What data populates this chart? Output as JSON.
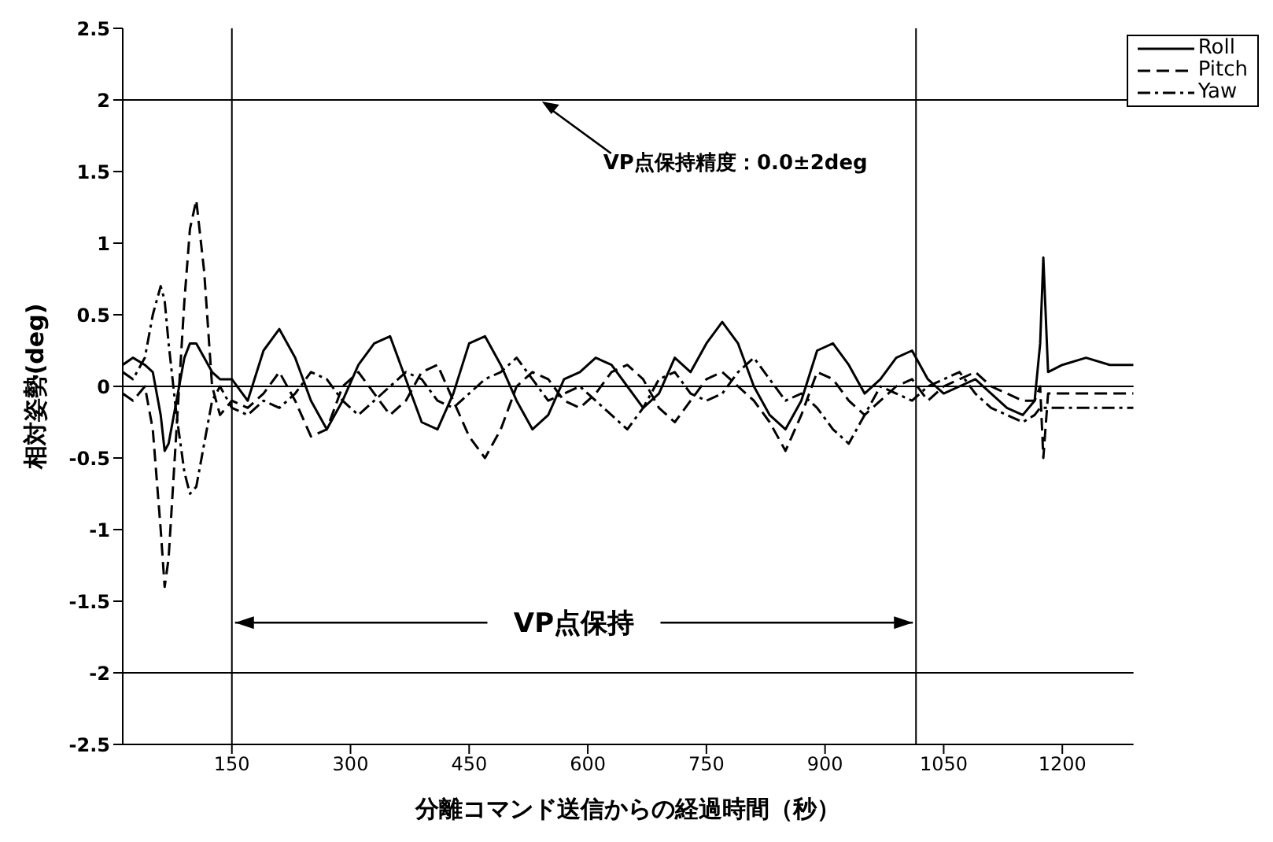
{
  "chart_data": {
    "type": "line",
    "xlabel": "分離コマンド送信からの経過時間（秒）",
    "ylabel": "相対姿勢(deg)",
    "x": [
      12,
      25,
      40,
      50,
      60,
      65,
      70,
      80,
      90,
      97,
      105,
      115,
      125,
      135,
      150,
      170,
      190,
      210,
      230,
      250,
      270,
      290,
      310,
      330,
      350,
      370,
      390,
      410,
      430,
      450,
      470,
      490,
      510,
      530,
      550,
      570,
      590,
      610,
      630,
      650,
      670,
      690,
      710,
      730,
      750,
      770,
      790,
      810,
      830,
      850,
      870,
      890,
      910,
      930,
      950,
      970,
      990,
      1010,
      1030,
      1050,
      1070,
      1090,
      1110,
      1130,
      1150,
      1165,
      1172,
      1176,
      1182,
      1200,
      1230,
      1260,
      1290
    ],
    "series": [
      {
        "name": "Roll",
        "color": "#000000",
        "line_style": "solid",
        "values": [
          0.15,
          0.2,
          0.15,
          0.1,
          -0.2,
          -0.45,
          -0.4,
          -0.1,
          0.2,
          0.3,
          0.3,
          0.2,
          0.1,
          0.05,
          0.05,
          -0.1,
          0.25,
          0.4,
          0.2,
          -0.1,
          -0.3,
          -0.1,
          0.15,
          0.3,
          0.35,
          0.05,
          -0.25,
          -0.3,
          -0.05,
          0.3,
          0.35,
          0.15,
          -0.1,
          -0.3,
          -0.2,
          0.05,
          0.1,
          0.2,
          0.15,
          0.0,
          -0.15,
          -0.05,
          0.2,
          0.1,
          0.3,
          0.45,
          0.3,
          0.0,
          -0.2,
          -0.3,
          -0.1,
          0.25,
          0.3,
          0.15,
          -0.05,
          0.05,
          0.2,
          0.25,
          0.05,
          -0.05,
          0.0,
          0.05,
          -0.05,
          -0.15,
          -0.2,
          -0.1,
          0.3,
          0.9,
          0.1,
          0.15,
          0.2,
          0.15,
          0.15
        ]
      },
      {
        "name": "Pitch",
        "color": "#000000",
        "line_style": "dashed",
        "values": [
          -0.05,
          -0.1,
          0.0,
          -0.3,
          -1.0,
          -1.4,
          -1.2,
          -0.3,
          0.6,
          1.1,
          1.3,
          0.8,
          0.0,
          -0.2,
          -0.1,
          -0.15,
          -0.05,
          0.1,
          -0.1,
          -0.35,
          -0.3,
          0.0,
          0.1,
          -0.05,
          -0.2,
          -0.1,
          0.1,
          0.15,
          -0.1,
          -0.35,
          -0.5,
          -0.3,
          0.0,
          0.1,
          0.05,
          -0.1,
          -0.15,
          -0.05,
          0.1,
          0.15,
          0.05,
          -0.15,
          -0.25,
          -0.1,
          0.05,
          0.1,
          0.0,
          -0.1,
          -0.25,
          -0.45,
          -0.2,
          0.1,
          0.05,
          -0.1,
          -0.2,
          -0.1,
          0.0,
          0.05,
          -0.1,
          0.0,
          0.05,
          0.1,
          0.0,
          -0.05,
          -0.1,
          -0.1,
          0.0,
          -0.5,
          -0.05,
          -0.05,
          -0.05,
          -0.05,
          -0.05
        ]
      },
      {
        "name": "Yaw",
        "color": "#000000",
        "line_style": "dashdot",
        "values": [
          0.1,
          0.05,
          0.2,
          0.5,
          0.7,
          0.6,
          0.3,
          -0.2,
          -0.6,
          -0.75,
          -0.7,
          -0.4,
          -0.1,
          0.0,
          -0.15,
          -0.2,
          -0.1,
          -0.15,
          -0.05,
          0.1,
          0.05,
          -0.1,
          -0.2,
          -0.1,
          0.0,
          0.1,
          0.05,
          -0.1,
          -0.15,
          -0.05,
          0.05,
          0.1,
          0.2,
          0.05,
          -0.1,
          -0.05,
          0.0,
          -0.1,
          -0.2,
          -0.3,
          -0.15,
          0.05,
          0.1,
          -0.05,
          -0.1,
          -0.05,
          0.1,
          0.2,
          0.05,
          -0.1,
          -0.05,
          -0.15,
          -0.3,
          -0.4,
          -0.2,
          0.0,
          -0.05,
          -0.1,
          0.0,
          0.05,
          0.1,
          -0.05,
          -0.15,
          -0.2,
          -0.25,
          -0.2,
          -0.15,
          -0.15,
          -0.15,
          -0.15,
          -0.15,
          -0.15,
          -0.15
        ]
      }
    ],
    "xlim": [
      12,
      1290
    ],
    "xticks": [
      150,
      300,
      450,
      600,
      750,
      900,
      1050,
      1200
    ],
    "ylim": [
      -2.5,
      2.5
    ],
    "yticks": [
      -2.5,
      -2,
      -1.5,
      -1,
      -0.5,
      0,
      0.5,
      1,
      1.5,
      2,
      2.5
    ],
    "ref_lines": [
      {
        "axis": "y",
        "value": 2
      },
      {
        "axis": "y",
        "value": 0
      },
      {
        "axis": "y",
        "value": -2
      },
      {
        "axis": "x",
        "value": 150
      },
      {
        "axis": "x",
        "value": 1015
      }
    ],
    "annotations": [
      {
        "text": "VP点保持精度：0.0±2deg",
        "x": 540,
        "y": 2
      },
      {
        "text": "VP点保持",
        "x": 150,
        "y": -1.65
      }
    ],
    "grid": false,
    "legend": "top right",
    "marker": "none"
  }
}
